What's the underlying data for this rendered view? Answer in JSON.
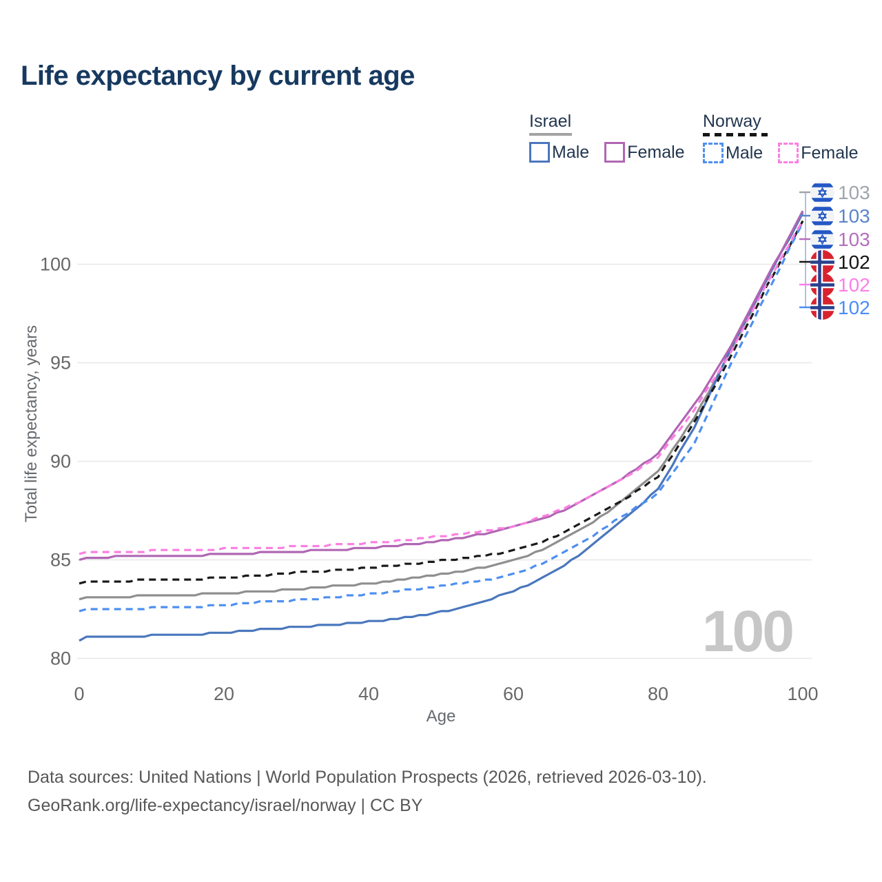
{
  "title": "Life expectancy by current age",
  "legend": {
    "groups": [
      {
        "name": "Israel",
        "underline_style": "solid",
        "underline_color": "#a3a3a3",
        "items": [
          {
            "label": "Male",
            "color": "#4a77bd",
            "dashed": false
          },
          {
            "label": "Female",
            "color": "#b066b3",
            "dashed": false
          }
        ]
      },
      {
        "name": "Norway",
        "underline_style": "dashed",
        "underline_color": "#151515",
        "items": [
          {
            "label": "Male",
            "color": "#4d8ff0",
            "dashed": true
          },
          {
            "label": "Female",
            "color": "#fb7fe1",
            "dashed": true
          }
        ]
      }
    ]
  },
  "watermark": "100",
  "end_labels": [
    {
      "value": "103",
      "color": "#a0a5ab",
      "flag": "israel"
    },
    {
      "value": "103",
      "color": "#5c84cb",
      "flag": "israel"
    },
    {
      "value": "103",
      "color": "#b36fbd",
      "flag": "israel"
    },
    {
      "value": "102",
      "color": "#141414",
      "flag": "norway"
    },
    {
      "value": "102",
      "color": "#fc7fe8",
      "flag": "norway"
    },
    {
      "value": "102",
      "color": "#4a8df5",
      "flag": "norway"
    }
  ],
  "footer": {
    "line1": "Data sources: United Nations | World Population Prospects (2026, retrieved 2026-03-10).",
    "line2": "GeoRank.org/life-expectancy/israel/norway | CC BY"
  },
  "chart_data": {
    "type": "line",
    "title": "Life expectancy by current age",
    "xlabel": "Age",
    "ylabel": "Total life expectancy, years",
    "xlim": [
      0,
      100
    ],
    "ylim": [
      79,
      104
    ],
    "x_ticks": [
      0,
      20,
      40,
      60,
      80,
      100
    ],
    "y_ticks": [
      80,
      85,
      90,
      95,
      100
    ],
    "grid": "horizontal",
    "legend_position": "top-right",
    "ages": [
      0,
      1,
      5,
      10,
      15,
      20,
      25,
      30,
      35,
      40,
      45,
      50,
      55,
      60,
      65,
      70,
      75,
      80,
      85,
      90,
      95,
      100
    ],
    "series": [
      {
        "name": "Israel Male",
        "country": "Israel",
        "sex": "male",
        "style": "solid",
        "color": "#4a77bd",
        "end_label": "103",
        "values": [
          80.9,
          81.05,
          81.1,
          81.15,
          81.2,
          81.3,
          81.45,
          81.6,
          81.7,
          81.85,
          82.05,
          82.35,
          82.8,
          83.4,
          84.25,
          85.45,
          86.95,
          88.6,
          91.7,
          95.65,
          99.2,
          102.6
        ]
      },
      {
        "name": "Israel Female",
        "country": "Israel",
        "sex": "female",
        "style": "solid",
        "color": "#b066b3",
        "end_label": "103",
        "values": [
          85.0,
          85.1,
          85.15,
          85.2,
          85.22,
          85.28,
          85.35,
          85.42,
          85.5,
          85.6,
          85.75,
          85.95,
          86.25,
          86.65,
          87.2,
          88.05,
          89.1,
          90.35,
          92.85,
          95.75,
          99.3,
          102.65
        ]
      },
      {
        "name": "Israel Total",
        "country": "Israel",
        "sex": "both",
        "style": "solid",
        "color": "#8f8f8f",
        "end_label": "103",
        "values": [
          83.0,
          83.1,
          83.12,
          83.17,
          83.22,
          83.3,
          83.4,
          83.52,
          83.65,
          83.8,
          84.0,
          84.25,
          84.55,
          84.95,
          85.65,
          86.65,
          87.95,
          89.45,
          92.2,
          95.55,
          99.2,
          102.65
        ]
      },
      {
        "name": "Norway Male",
        "country": "Norway",
        "sex": "male",
        "style": "dashed",
        "color": "#4d8ff0",
        "end_label": "102",
        "values": [
          82.4,
          82.5,
          82.52,
          82.55,
          82.6,
          82.72,
          82.85,
          82.95,
          83.1,
          83.25,
          83.45,
          83.65,
          83.9,
          84.25,
          84.95,
          85.95,
          87.2,
          88.35,
          90.9,
          94.85,
          98.5,
          102.1
        ]
      },
      {
        "name": "Norway Female",
        "country": "Norway",
        "sex": "female",
        "style": "dashed",
        "color": "#fb7fe1",
        "end_label": "102",
        "values": [
          85.3,
          85.4,
          85.42,
          85.45,
          85.48,
          85.55,
          85.6,
          85.68,
          85.75,
          85.85,
          86.0,
          86.2,
          86.4,
          86.7,
          87.3,
          88.1,
          89.1,
          90.2,
          92.6,
          95.5,
          99.0,
          102.2
        ]
      },
      {
        "name": "Norway Total",
        "country": "Norway",
        "sex": "both",
        "style": "dashed",
        "color": "#1a1a1a",
        "end_label": "102",
        "values": [
          83.8,
          83.9,
          83.93,
          83.97,
          84.0,
          84.1,
          84.22,
          84.35,
          84.45,
          84.6,
          84.75,
          84.95,
          85.15,
          85.45,
          86.05,
          86.95,
          88.0,
          89.2,
          91.95,
          95.25,
          98.85,
          102.15
        ]
      }
    ]
  }
}
